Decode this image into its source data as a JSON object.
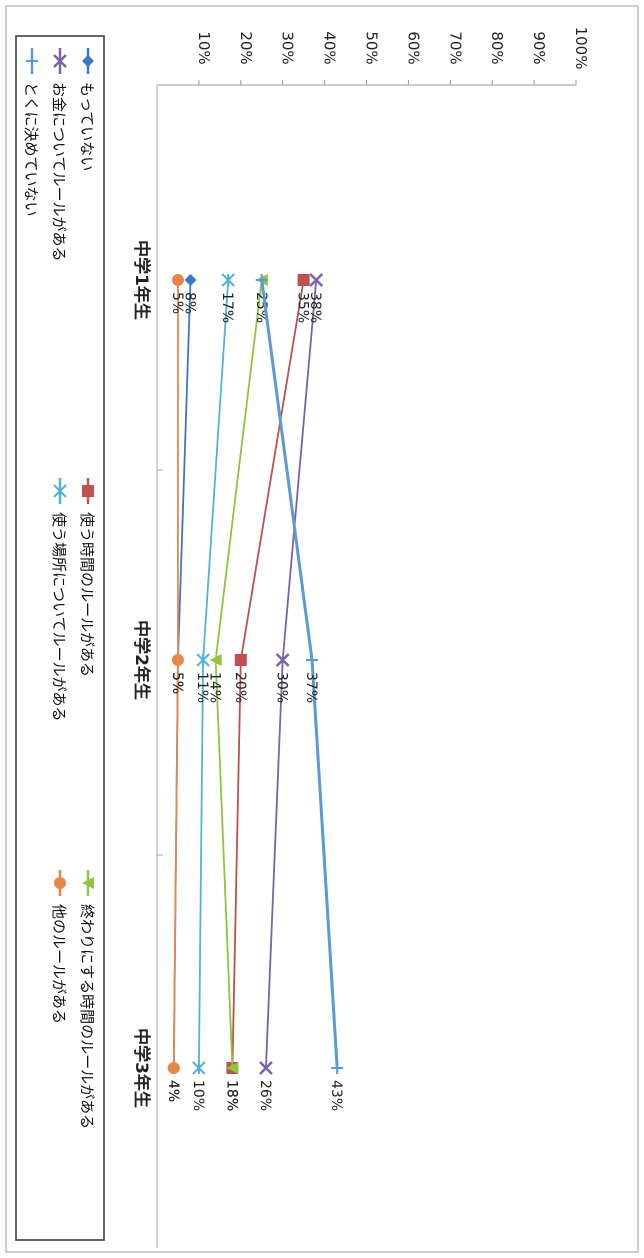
{
  "chart_data": {
    "type": "line",
    "categories": [
      "中学1年生",
      "中学2年生",
      "中学3年生"
    ],
    "ylim": [
      0,
      100
    ],
    "yticks": [
      "10%",
      "20%",
      "30%",
      "40%",
      "50%",
      "60%",
      "70%",
      "80%",
      "90%",
      "100%"
    ],
    "ytick_values": [
      10,
      20,
      30,
      40,
      50,
      60,
      70,
      80,
      90,
      100
    ],
    "legend_position": "bottom",
    "series": [
      {
        "name": "もっていない",
        "values": [
          8,
          5,
          4
        ],
        "labels": [
          "8%",
          "5%",
          "4%"
        ],
        "color": "#3b78c4",
        "marker": "diamond"
      },
      {
        "name": "使う時間のルールがある",
        "values": [
          35,
          20,
          18
        ],
        "labels": [
          "35%",
          "20%",
          "18%"
        ],
        "color": "#c0504d",
        "marker": "square"
      },
      {
        "name": "終わりにする時間のルールがある",
        "values": [
          25,
          14,
          18
        ],
        "labels": [
          "25%",
          "14%",
          "18%"
        ],
        "color": "#8cc63f",
        "marker": "triangle"
      },
      {
        "name": "お金についてルールがある",
        "values": [
          38,
          30,
          26
        ],
        "labels": [
          "38%",
          "30%",
          "26%"
        ],
        "color": "#7a63a8",
        "marker": "x"
      },
      {
        "name": "使う場所についてルールがある",
        "values": [
          17,
          11,
          10
        ],
        "labels": [
          "17%",
          "11%",
          "10%"
        ],
        "color": "#4fb3d9",
        "marker": "star"
      },
      {
        "name": "他のルールがある",
        "values": [
          5,
          5,
          4
        ],
        "labels": [
          "5%",
          "5%",
          "4%"
        ],
        "color": "#e8864a",
        "marker": "circle"
      },
      {
        "name": "とくに決めていない",
        "values": [
          25,
          37,
          43
        ],
        "labels": [
          "",
          "37%",
          "43%"
        ],
        "color": "#5b9bd5",
        "marker": "plus"
      }
    ]
  }
}
